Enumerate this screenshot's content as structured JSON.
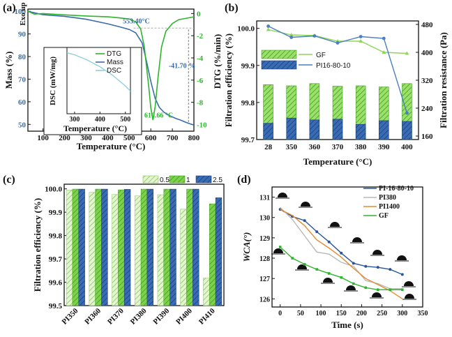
{
  "panel_labels": [
    "(a)",
    "(b)",
    "(c)",
    "(d)"
  ],
  "chart_data": [
    {
      "id": "a",
      "type": "line",
      "xlabel": "Temperature (°C)",
      "ylabel_left": "Mass (%)",
      "ylabel_right": "DTG (%/min)",
      "xlim": [
        30,
        800
      ],
      "ylim_left": [
        47,
        101
      ],
      "ylim_right": [
        -10.6,
        0.4
      ],
      "x_ticks": [
        100,
        200,
        300,
        400,
        500,
        600,
        700,
        800
      ],
      "y_ticks_left": [
        50,
        60,
        70,
        80,
        90,
        100
      ],
      "y_ticks_right": [
        0,
        -2,
        -4,
        -6,
        -8,
        -10
      ],
      "series": [
        {
          "name": "Mass",
          "axis": "left",
          "color": "#3a6bab",
          "x": [
            30,
            100,
            200,
            300,
            400,
            450,
            500,
            530,
            560,
            580,
            600,
            620,
            640,
            660,
            680,
            700,
            720,
            740,
            760,
            780,
            800
          ],
          "y": [
            100,
            98.5,
            97.8,
            96.5,
            94.5,
            93.3,
            92.0,
            90.5,
            86.0,
            78.0,
            69.0,
            61.5,
            57.5,
            55.5,
            54.2,
            53.3,
            52.5,
            51.8,
            51.0,
            50.3,
            49.7
          ]
        },
        {
          "name": "DTG",
          "axis": "right",
          "color": "#2db52d",
          "x": [
            30,
            60,
            100,
            200,
            300,
            400,
            450,
            500,
            530,
            553,
            570,
            590,
            600,
            610,
            620,
            635,
            650,
            670,
            700,
            730,
            760,
            800
          ],
          "y": [
            0.2,
            -0.05,
            0.0,
            -0.12,
            -0.22,
            -0.3,
            -0.38,
            -0.5,
            -0.75,
            -1.4,
            -3.0,
            -6.5,
            -8.5,
            -9.6,
            -8.4,
            -5.5,
            -3.0,
            -1.6,
            -0.9,
            -0.55,
            -0.45,
            -0.3
          ]
        }
      ],
      "annotations": [
        "553.40°C",
        "610.66 °C",
        "-41.70 %"
      ],
      "label_exo": "Exo up",
      "legend": [
        "DTG",
        "Mass",
        "DSC"
      ],
      "inset": {
        "xlabel": "Temperature (°C)",
        "ylabel": "DSC (mW/mg)",
        "x_ticks": [
          300,
          400,
          500
        ],
        "xlim": [
          270,
          520
        ],
        "series": [
          {
            "name": "DSC",
            "color": "#8ecfe0",
            "x": [
              270,
              300,
              350,
              400,
              450,
              500,
              520
            ],
            "y": [
              0.92,
              0.89,
              0.81,
              0.71,
              0.58,
              0.42,
              0.34
            ]
          }
        ]
      }
    },
    {
      "id": "b",
      "type": "bar",
      "xlabel": "Temperature (°C)",
      "ylabel_left": "Filtration efficiency (%)",
      "ylabel_right": "Filtration resistance (Pa)",
      "categories": [
        "28",
        "350",
        "360",
        "370",
        "380",
        "390",
        "400"
      ],
      "ylim_left": [
        99.7,
        100.02
      ],
      "ylim_right": [
        150,
        490
      ],
      "y_ticks_left": [
        "99.7",
        "99.8",
        "99.9",
        "100.0"
      ],
      "y_ticks_right": [
        "160",
        "240",
        "320",
        "400",
        "480"
      ],
      "series": [
        {
          "name": "GF",
          "kind": "bar",
          "axis": "left",
          "color": "#8fd65a",
          "values": [
            99.848,
            99.845,
            99.851,
            99.844,
            99.845,
            99.842,
            99.851
          ]
        },
        {
          "name": "PI16-80-10",
          "kind": "bar",
          "axis": "left",
          "color": "#2a5699",
          "values": [
            99.744,
            99.758,
            99.753,
            99.755,
            99.741,
            99.751,
            99.749
          ]
        },
        {
          "name": "GF",
          "kind": "line",
          "axis": "right",
          "color": "#8fd65a",
          "values": [
            465,
            450,
            448,
            432,
            432,
            400,
            397
          ]
        },
        {
          "name": "PI16-80-10",
          "kind": "line",
          "axis": "right",
          "color": "#4a7fc1",
          "values": [
            475,
            443,
            447,
            427,
            445,
            440,
            226
          ]
        }
      ],
      "legend": [
        "GF",
        "PI16-80-10"
      ]
    },
    {
      "id": "c",
      "type": "bar",
      "ylabel": "Filtration efficiency (%)",
      "categories": [
        "PI350",
        "PI360",
        "PI370",
        "PI380",
        "PI390",
        "PI400",
        "PI410"
      ],
      "ylim": [
        99.5,
        100.02
      ],
      "y_ticks": [
        "99.5",
        "99.6",
        "99.7",
        "99.8",
        "99.9",
        "100.0"
      ],
      "series": [
        {
          "name": "0.5",
          "color": "#c6e9a8",
          "values": [
            99.995,
            99.985,
            99.976,
            99.97,
            99.975,
            99.913,
            99.618
          ]
        },
        {
          "name": "1",
          "color": "#6fcf3c",
          "values": [
            99.999,
            99.999,
            99.996,
            99.999,
            99.999,
            99.999,
            99.936
          ]
        },
        {
          "name": "2.5",
          "color": "#2a5699",
          "values": [
            99.999,
            99.999,
            99.998,
            99.999,
            99.999,
            99.999,
            99.962
          ]
        }
      ]
    },
    {
      "id": "d",
      "type": "line",
      "xlabel": "Time (s)",
      "ylabel": "WCA(°)",
      "xlim": [
        -20,
        350
      ],
      "ylim": [
        125.6,
        131.5
      ],
      "x_ticks": [
        0,
        50,
        100,
        150,
        200,
        250,
        300,
        350
      ],
      "y_ticks": [
        126,
        127,
        128,
        129,
        130,
        131
      ],
      "series": [
        {
          "name": "PI-16-80-10",
          "color": "#2a5699",
          "x": [
            0,
            30,
            60,
            90,
            120,
            150,
            180,
            210,
            240,
            270,
            300
          ],
          "y": [
            130.4,
            130.05,
            129.85,
            129.3,
            128.8,
            128.25,
            127.75,
            127.6,
            127.55,
            127.45,
            127.2
          ]
        },
        {
          "name": "PI380",
          "color": "#b8b8b8",
          "x": [
            0,
            30,
            60,
            90,
            120,
            150,
            180,
            210,
            240,
            270,
            300
          ],
          "y": [
            130.5,
            129.9,
            129.1,
            128.3,
            128.2,
            127.8,
            127.6,
            126.9,
            126.75,
            126.5,
            126.5
          ]
        },
        {
          "name": "PI1400",
          "color": "#e68a2e",
          "x": [
            0,
            30,
            60,
            90,
            120,
            150,
            180,
            210,
            240,
            270,
            300
          ],
          "y": [
            130.4,
            130.1,
            129.6,
            128.9,
            128.5,
            128.05,
            127.5,
            127.0,
            126.7,
            126.4,
            126.0
          ]
        },
        {
          "name": "GF",
          "color": "#2db52d",
          "x": [
            0,
            30,
            60,
            90,
            120,
            150,
            180,
            210,
            240,
            270,
            300
          ],
          "y": [
            128.55,
            128.0,
            127.7,
            127.45,
            127.25,
            127.05,
            126.75,
            126.55,
            126.45,
            126.45,
            126.45
          ]
        }
      ]
    }
  ]
}
